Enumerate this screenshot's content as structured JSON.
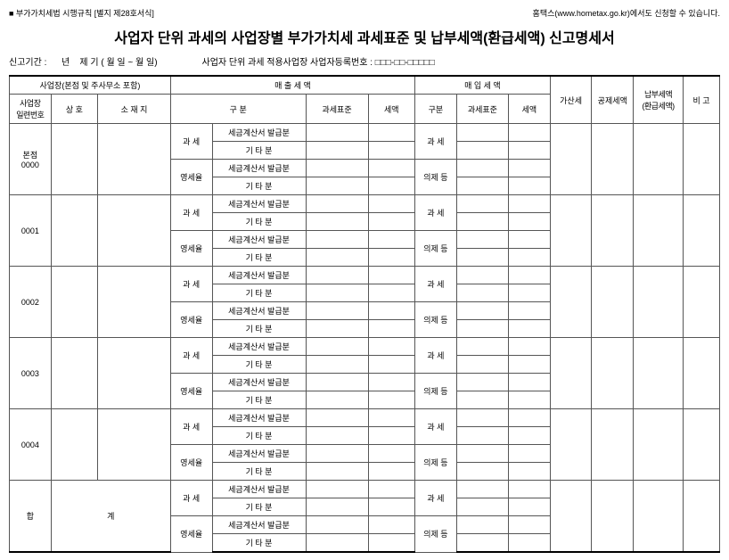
{
  "header": {
    "form_ref": "■ 부가가치세법 시행규칙 [별지 제28호서식]",
    "hometax": "홈택스(www.hometax.go.kr)에서도 신청할 수 있습니다."
  },
  "title": "사업자 단위 과세의 사업장별 부가가치세 과세표준 및 납부세액(환급세액) 신고명세서",
  "period": {
    "label": "신고기간 : ",
    "blank_year": "년",
    "blank_period": "제   기 (     월    일 ~      월    일)",
    "right_label": "사업자 단위 과세 적용사업장 사업자등록번호 : □□□-□□-□□□□□"
  },
  "columns": {
    "biz_loc": "사업장(본점 및 주사무소 포함)",
    "biz_no": "사업장\n일련번호",
    "name": "상   호",
    "addr": "소 재 지",
    "sales": "매   출   세   액",
    "classification": "구  분",
    "taxbase": "과세표준",
    "tax": "세액",
    "purchase": "매   입   세   액",
    "p_class": "구분",
    "p_taxbase": "과세표준",
    "p_tax": "세액",
    "addition": "가산세",
    "deduction": "공제세액",
    "payable": "납부세액\n(환급세액)",
    "note": "비  고"
  },
  "rowlabels": {
    "gwase": "과  세",
    "yeongse": "영세율",
    "invoice": "세금계산서 발급분",
    "etc": "기 타 분",
    "p_gwase": "과  세",
    "p_uiije": "의제 등"
  },
  "rows": [
    {
      "seq": "본점\n0000"
    },
    {
      "seq": "0001"
    },
    {
      "seq": "0002"
    },
    {
      "seq": "0003"
    },
    {
      "seq": "0004"
    }
  ],
  "sum": {
    "hap": "합",
    "gye": "계"
  }
}
